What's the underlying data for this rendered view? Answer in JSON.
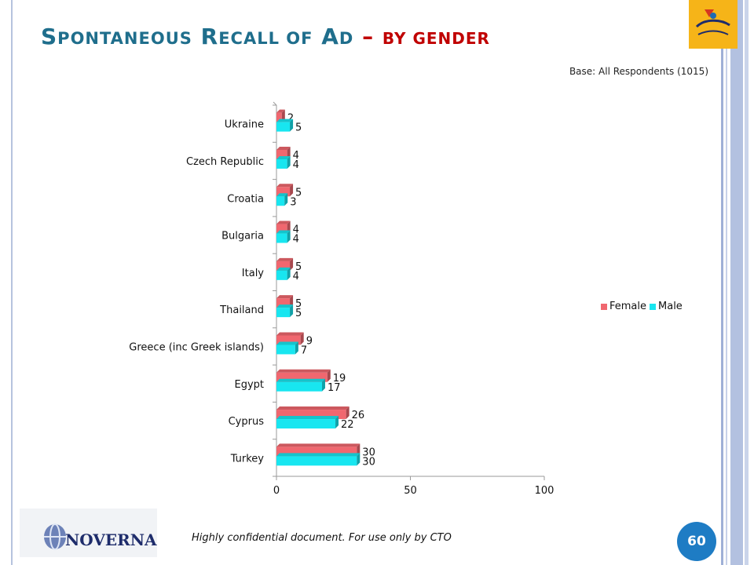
{
  "slide": {
    "title_lead": "S",
    "title_rest1": "pontaneous",
    "title_r": "R",
    "title_rest2": "ecall of",
    "title_a": "A",
    "title_rest3": "d",
    "title_dash": "–",
    "title_suffix": "by gender",
    "base_note": "Base: All Respondents (1015)",
    "footer_note": "Highly confidential document. For use only by CTO",
    "page_number": "60",
    "logo_text": "NOVERNA",
    "colors": {
      "title": "#1f6e8c",
      "accent": "#c00000",
      "badge": "#1e7cc4"
    }
  },
  "chart_data": {
    "type": "bar",
    "orientation": "horizontal",
    "categories": [
      "Ukraine",
      "Czech Republic",
      "Croatia",
      "Bulgaria",
      "Italy",
      "Thailand",
      "Greece (inc Greek islands)",
      "Egypt",
      "Cyprus",
      "Turkey"
    ],
    "series": [
      {
        "name": "Female",
        "color": "#f0676f",
        "values": [
          2,
          4,
          5,
          4,
          5,
          5,
          9,
          19,
          26,
          30
        ]
      },
      {
        "name": "Male",
        "color": "#18e6f0",
        "values": [
          5,
          4,
          3,
          4,
          4,
          5,
          7,
          17,
          22,
          30
        ]
      }
    ],
    "xlim": [
      0,
      100
    ],
    "xticks": [
      "0",
      "50",
      "100"
    ],
    "legend_position": "right",
    "grid": false
  }
}
